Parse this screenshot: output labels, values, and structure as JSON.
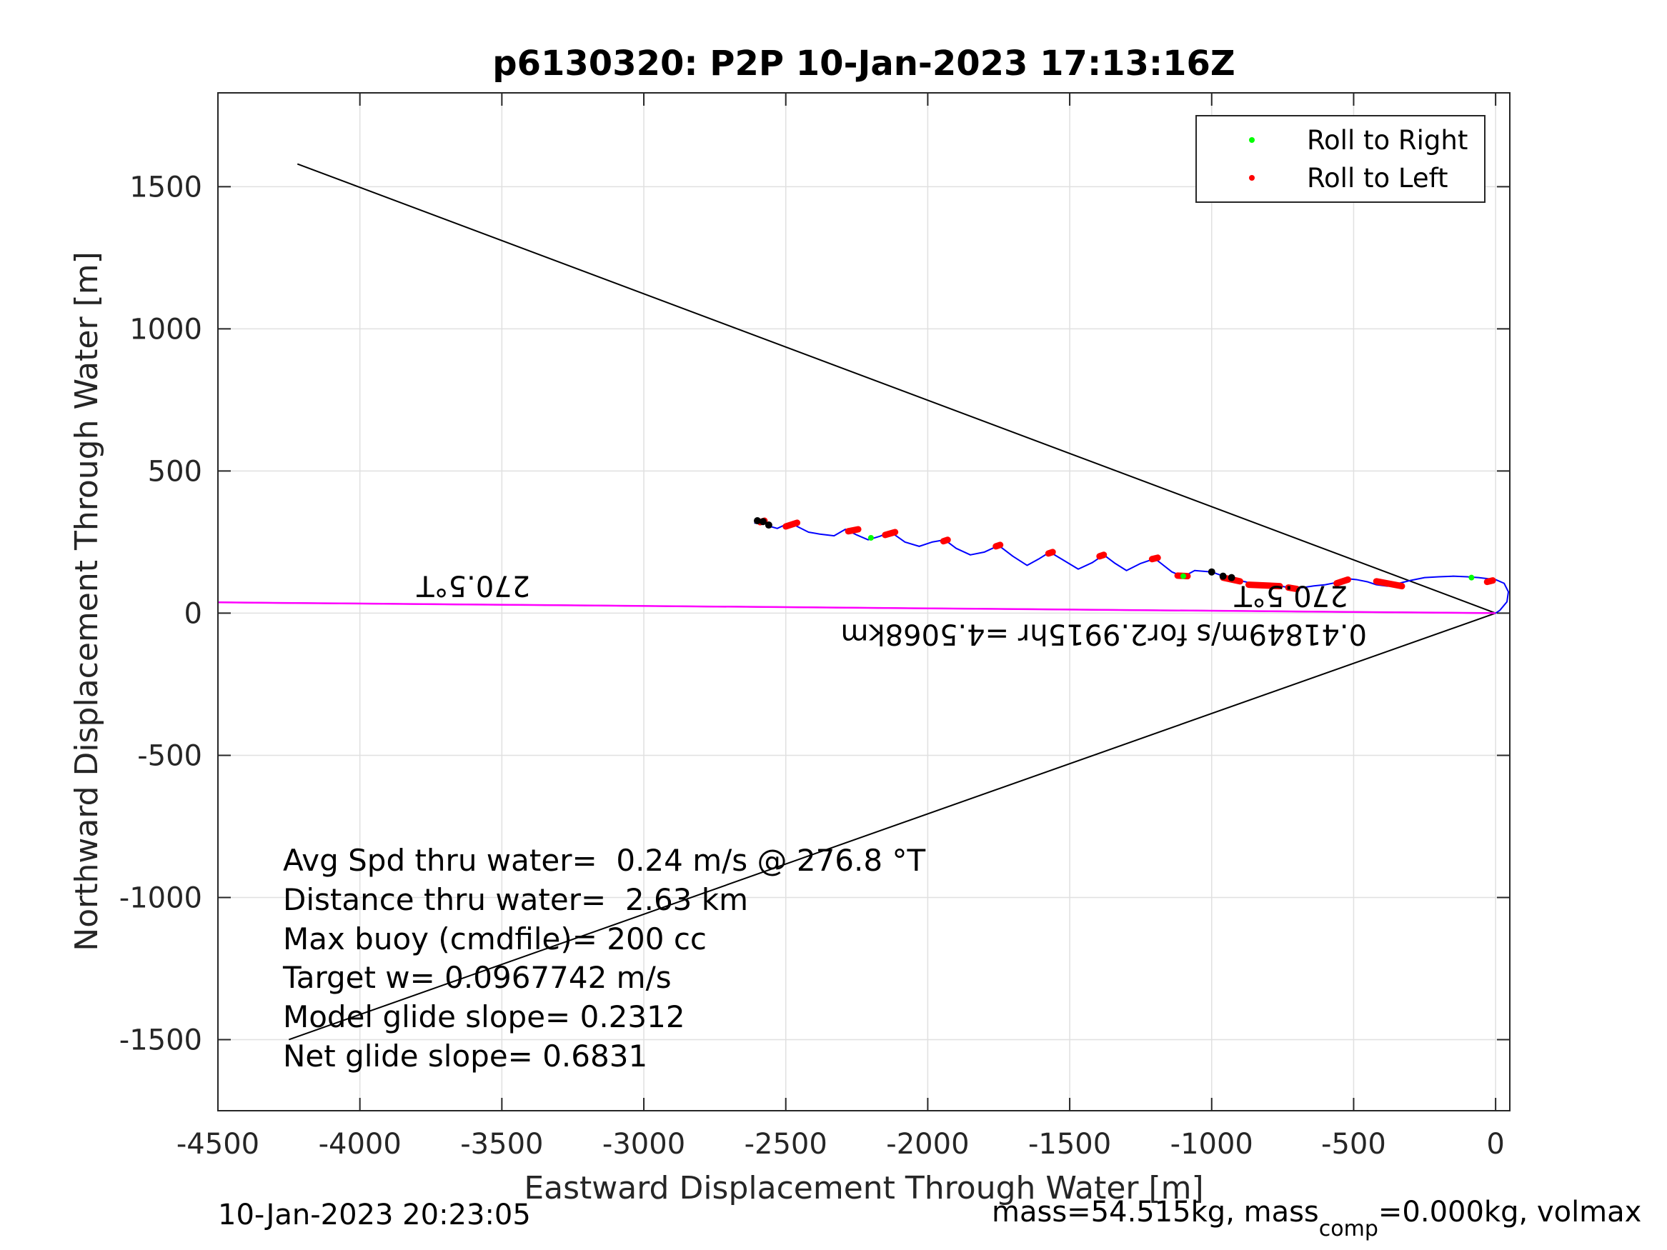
{
  "colors": {
    "track": "#0000ff",
    "roll_right": "#00ff00",
    "roll_left": "#ff0000",
    "heading_line": "#ff00ff",
    "marker": "#000000",
    "grid": "#e0e0e0",
    "axes": "#262626"
  },
  "chart_data": {
    "type": "line",
    "title": "p6130320: P2P 10-Jan-2023 17:13:16Z",
    "xlabel": "Eastward Displacement Through Water [m]",
    "ylabel": "Northward Displacement Through Water [m]",
    "xlim": [
      -4500,
      50
    ],
    "ylim": [
      -1750,
      1830
    ],
    "grid": true,
    "x_ticks": [
      -4500,
      -4000,
      -3500,
      -3000,
      -2500,
      -2000,
      -1500,
      -1000,
      -500,
      0
    ],
    "y_ticks": [
      -1500,
      -1000,
      -500,
      0,
      500,
      1000,
      1500
    ],
    "x_tick_labels": [
      "-4500",
      "-4000",
      "-3500",
      "-3000",
      "-2500",
      "-2000",
      "-1500",
      "-1000",
      "-500",
      "0"
    ],
    "y_tick_labels": [
      "-1500",
      "-1000",
      "-500",
      "0",
      "500",
      "1000",
      "1500"
    ],
    "legend": {
      "placement": "top-right",
      "entries": [
        {
          "label": "Roll to Right",
          "color": "#00ff00"
        },
        {
          "label": "Roll to Left",
          "color": "#ff0000"
        }
      ]
    },
    "track": [
      [
        0,
        0
      ],
      [
        15,
        10
      ],
      [
        40,
        40
      ],
      [
        45,
        75
      ],
      [
        30,
        105
      ],
      [
        0,
        118
      ],
      [
        -60,
        125
      ],
      [
        -100,
        128
      ],
      [
        -150,
        130
      ],
      [
        -200,
        128
      ],
      [
        -250,
        125
      ],
      [
        -300,
        115
      ],
      [
        -340,
        105
      ],
      [
        -380,
        95
      ],
      [
        -420,
        100
      ],
      [
        -450,
        110
      ],
      [
        -490,
        118
      ],
      [
        -530,
        122
      ],
      [
        -560,
        108
      ],
      [
        -600,
        100
      ],
      [
        -640,
        96
      ],
      [
        -680,
        90
      ],
      [
        -720,
        88
      ],
      [
        -780,
        100
      ],
      [
        -830,
        95
      ],
      [
        -880,
        110
      ],
      [
        -930,
        120
      ],
      [
        -1000,
        145
      ],
      [
        -1060,
        150
      ],
      [
        -1100,
        128
      ],
      [
        -1140,
        145
      ],
      [
        -1200,
        192
      ],
      [
        -1250,
        175
      ],
      [
        -1300,
        150
      ],
      [
        -1340,
        175
      ],
      [
        -1380,
        205
      ],
      [
        -1420,
        178
      ],
      [
        -1470,
        155
      ],
      [
        -1520,
        185
      ],
      [
        -1570,
        215
      ],
      [
        -1610,
        190
      ],
      [
        -1650,
        168
      ],
      [
        -1700,
        200
      ],
      [
        -1750,
        238
      ],
      [
        -1800,
        215
      ],
      [
        -1850,
        205
      ],
      [
        -1900,
        228
      ],
      [
        -1940,
        258
      ],
      [
        -1985,
        250
      ],
      [
        -2030,
        235
      ],
      [
        -2080,
        250
      ],
      [
        -2130,
        285
      ],
      [
        -2170,
        270
      ],
      [
        -2210,
        258
      ],
      [
        -2250,
        275
      ],
      [
        -2290,
        295
      ],
      [
        -2330,
        272
      ],
      [
        -2380,
        278
      ],
      [
        -2420,
        285
      ],
      [
        -2460,
        305
      ],
      [
        -2480,
        320
      ],
      [
        -2500,
        312
      ],
      [
        -2530,
        298
      ],
      [
        -2555,
        305
      ],
      [
        -2580,
        320
      ],
      [
        -2600,
        328
      ],
      [
        -2610,
        315
      ]
    ],
    "roll_left_segments": [
      [
        [
          -10,
          115
        ],
        [
          -30,
          110
        ]
      ],
      [
        [
          -330,
          95
        ],
        [
          -420,
          112
        ]
      ],
      [
        [
          -520,
          118
        ],
        [
          -560,
          105
        ]
      ],
      [
        [
          -700,
          85
        ],
        [
          -730,
          90
        ]
      ],
      [
        [
          -760,
          95
        ],
        [
          -870,
          100
        ]
      ],
      [
        [
          -900,
          112
        ],
        [
          -960,
          125
        ]
      ],
      [
        [
          -1120,
          132
        ],
        [
          -1085,
          130
        ]
      ],
      [
        [
          -1190,
          195
        ],
        [
          -1210,
          190
        ]
      ],
      [
        [
          -1380,
          205
        ],
        [
          -1395,
          200
        ]
      ],
      [
        [
          -1560,
          215
        ],
        [
          -1575,
          210
        ]
      ],
      [
        [
          -1745,
          240
        ],
        [
          -1760,
          235
        ]
      ],
      [
        [
          -1930,
          258
        ],
        [
          -1945,
          253
        ]
      ],
      [
        [
          -2115,
          285
        ],
        [
          -2150,
          275
        ]
      ],
      [
        [
          -2245,
          295
        ],
        [
          -2280,
          288
        ]
      ],
      [
        [
          -2460,
          318
        ],
        [
          -2500,
          305
        ]
      ],
      [
        [
          -2575,
          325
        ],
        [
          -2590,
          320
        ]
      ]
    ],
    "roll_right_points": [
      [
        -2200,
        265
      ],
      [
        -1100,
        130
      ],
      [
        -85,
        125
      ]
    ],
    "black_points": [
      [
        -2600,
        325
      ],
      [
        -2580,
        322
      ],
      [
        -2560,
        310
      ],
      [
        -1000,
        145
      ],
      [
        -960,
        130
      ],
      [
        -930,
        125
      ]
    ],
    "heading_lines": [
      {
        "from": [
          0,
          0
        ],
        "to": [
          -4220,
          1580
        ],
        "color": "#000000"
      },
      {
        "from": [
          0,
          0
        ],
        "to": [
          -4250,
          -1500
        ],
        "color": "#000000"
      },
      {
        "from": [
          0,
          0
        ],
        "to": [
          -4500,
          38
        ],
        "color": "#000000"
      },
      {
        "from": [
          0,
          0
        ],
        "to": [
          -4500,
          38
        ],
        "color": "#ff00ff"
      }
    ],
    "annotations_flipped": [
      {
        "text": "270.5°T",
        "x": -3600,
        "y": 130
      },
      {
        "text": "270.5°T",
        "x": -720,
        "y": 95
      },
      {
        "text": "0.41849m/s for2.9915hr =4.5068km",
        "x": -1380,
        "y": -40
      }
    ],
    "stats": [
      "Avg Spd thru water=  0.24 m/s @ 276.8 °T",
      "Distance thru water=  2.63 km",
      "Max buoy (cmdfile)= 200 cc",
      "Target w= 0.0967742 m/s",
      "Model glide slope= 0.2312",
      "Net glide slope= 0.6831"
    ]
  },
  "footer": {
    "timestamp": "10-Jan-2023 20:23:05",
    "mass_main": "mass=54.515kg, mass",
    "mass_sub": "comp",
    "mass_rest": "=0.000kg, volmax"
  }
}
